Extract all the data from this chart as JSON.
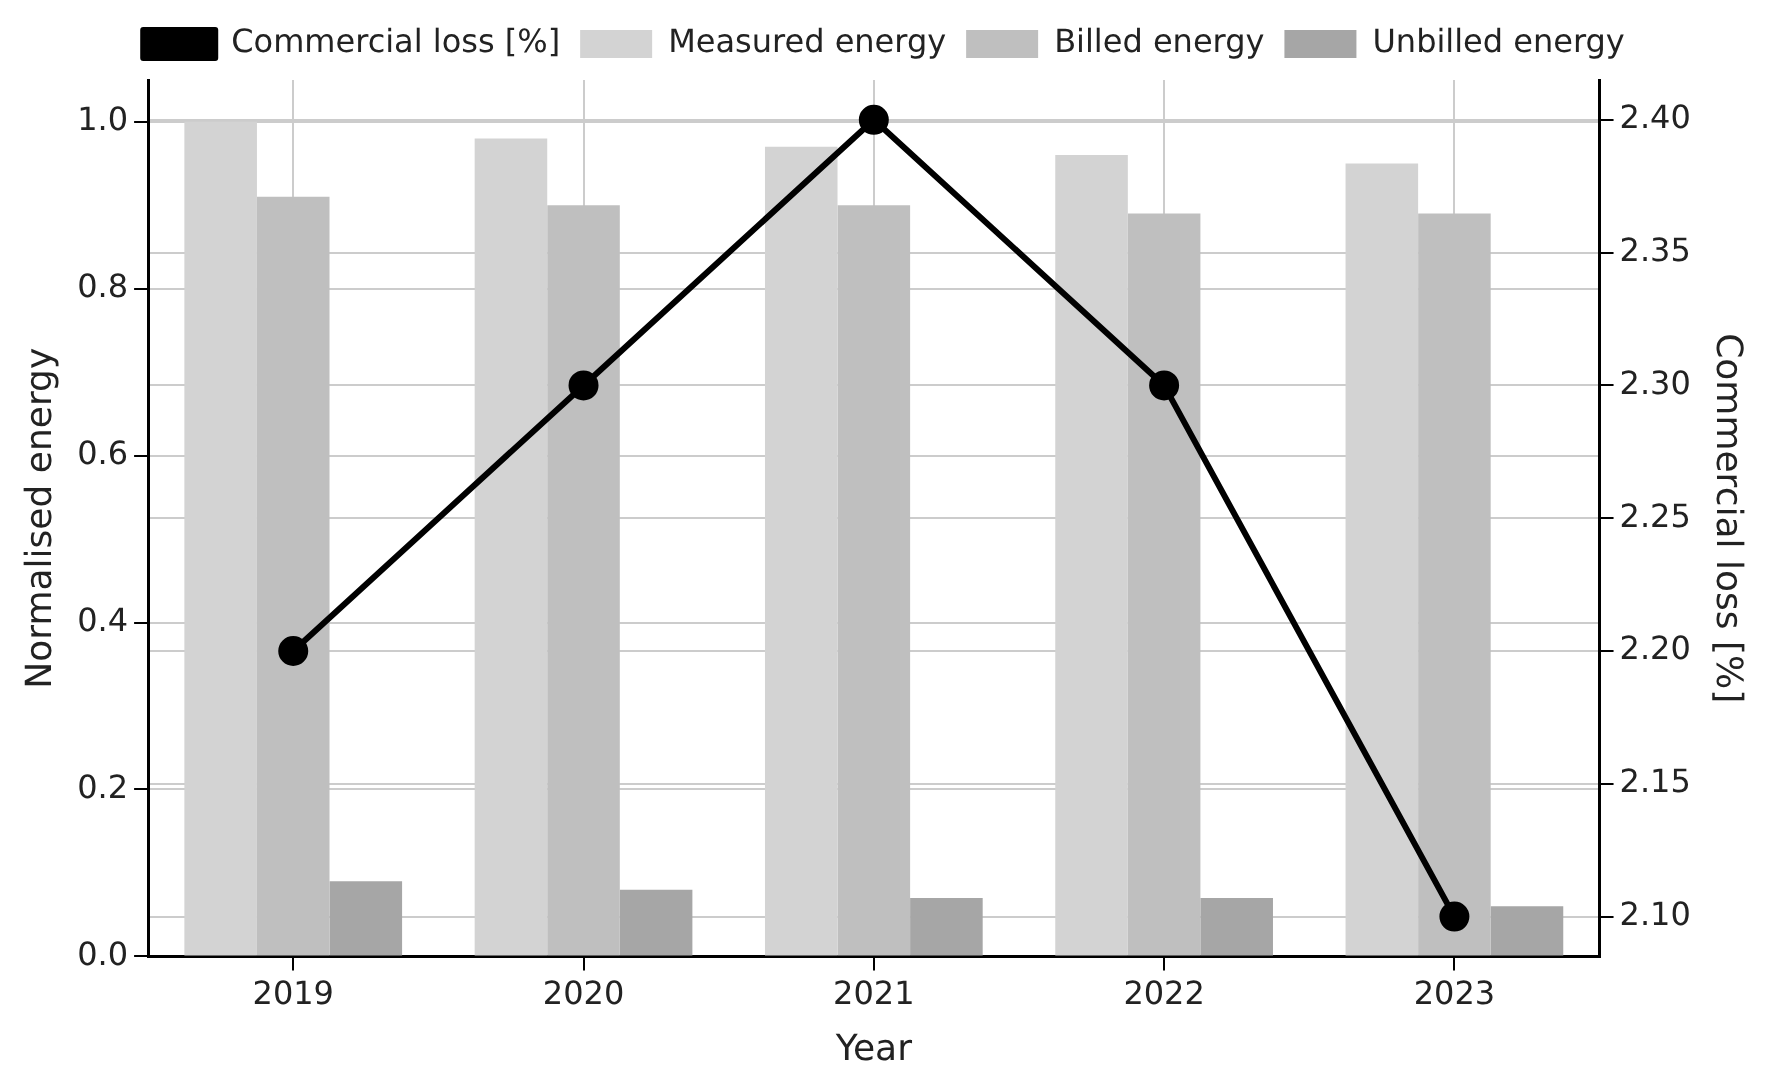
{
  "chart_data": {
    "type": "bar",
    "xlabel": "Year",
    "ylabel": "Normalised energy",
    "y2label": "Commercial loss [%]",
    "categories": [
      "2019",
      "2020",
      "2021",
      "2022",
      "2023"
    ],
    "series": [
      {
        "name": "Measured energy",
        "color": "#d3d3d3",
        "values": [
          1.0,
          0.98,
          0.97,
          0.96,
          0.95
        ]
      },
      {
        "name": "Billed energy",
        "color": "#bfbfbf",
        "values": [
          0.91,
          0.9,
          0.9,
          0.89,
          0.89
        ]
      },
      {
        "name": "Unbilled energy",
        "color": "#a6a6a6",
        "values": [
          0.09,
          0.08,
          0.07,
          0.07,
          0.06
        ]
      },
      {
        "name": "Commercial loss [%]",
        "type": "line",
        "axis": "y2",
        "color": "#000000",
        "values": [
          2.2,
          2.3,
          2.4,
          2.3,
          2.1
        ]
      }
    ],
    "ylim": [
      0,
      1.05
    ],
    "yticks": [
      {
        "value": 0,
        "label": "0.0"
      },
      0.2,
      0.4,
      0.6,
      0.8,
      {
        "value": 1,
        "label": "1.0"
      }
    ],
    "y2lim": [
      2.085,
      2.415
    ],
    "y2ticks": [
      {
        "value": 2.1,
        "label": "2.10"
      },
      2.15,
      {
        "value": 2.2,
        "label": "2.20"
      },
      2.25,
      {
        "value": 2.3,
        "label": "2.30"
      },
      2.35,
      {
        "value": 2.4,
        "label": "2.40"
      }
    ],
    "grid": true,
    "legend": "top",
    "marker": "circle",
    "line_style": "solid"
  }
}
